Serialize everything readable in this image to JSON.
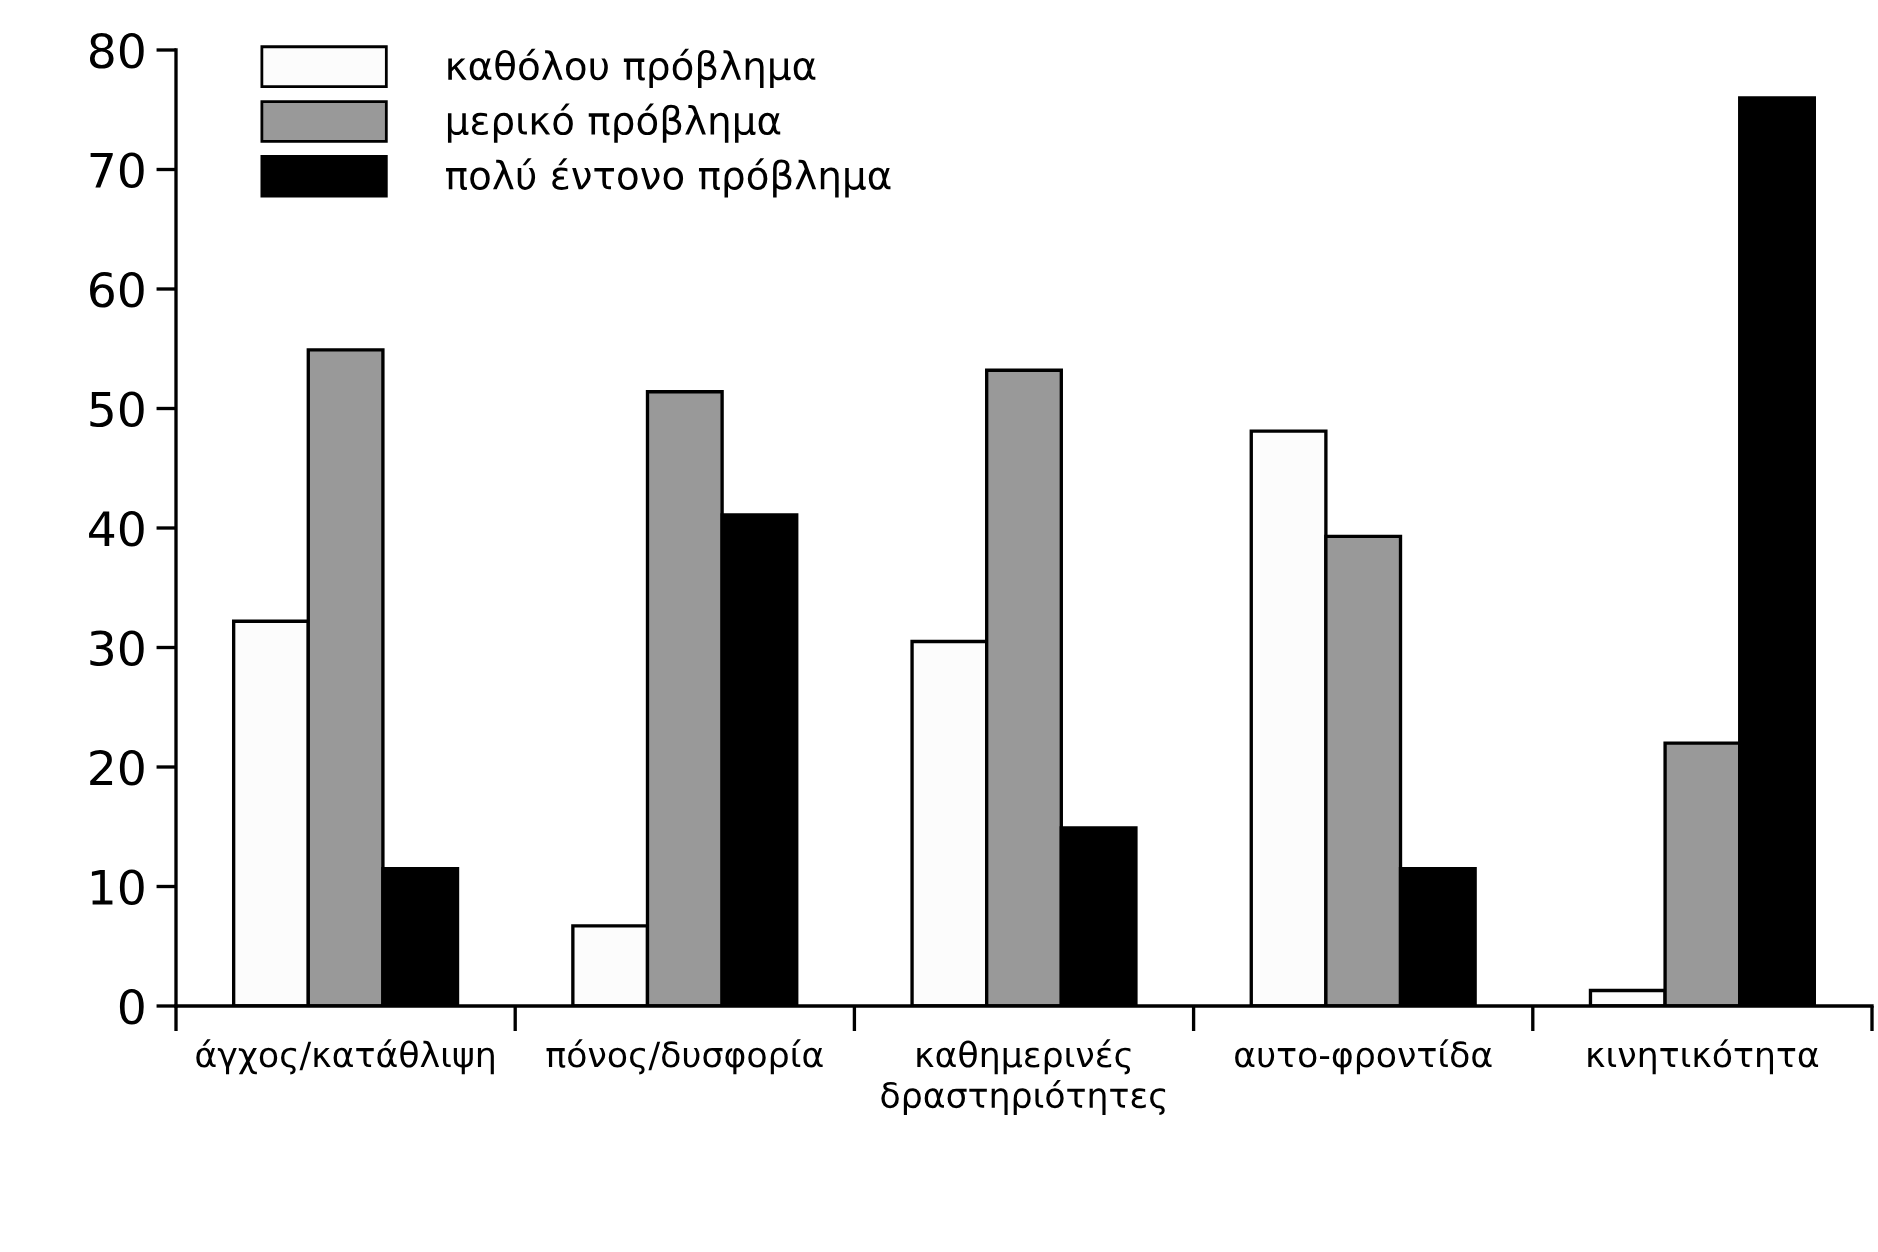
{
  "chart_data": {
    "type": "bar",
    "categories": [
      "άγχος/κατάθλιψη",
      "πόνος/δυσφορία",
      "καθημερινές\nδραστηριότητες",
      "αυτο-φροντίδα",
      "κινητικότητα"
    ],
    "series": [
      {
        "name": "καθόλου πρόβλημα",
        "color": "#fcfcfc",
        "values": [
          32.2,
          6.7,
          30.5,
          48.1,
          1.3
        ]
      },
      {
        "name": "μερικό πρόβλημα",
        "color": "#999999",
        "values": [
          54.9,
          51.4,
          53.2,
          39.3,
          22.0
        ]
      },
      {
        "name": "πολύ έντονο πρόβλημα",
        "color": "#000000",
        "values": [
          11.5,
          41.1,
          14.9,
          11.5,
          76.0
        ]
      }
    ],
    "ylim": [
      0,
      80
    ],
    "yticks": [
      0,
      10,
      20,
      30,
      40,
      50,
      60,
      70,
      80
    ],
    "grid": false,
    "legend": "top left"
  }
}
